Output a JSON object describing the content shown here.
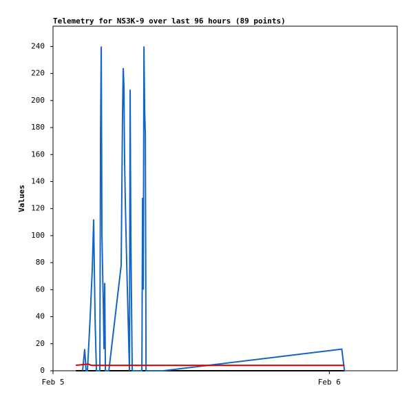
{
  "chart_data": {
    "type": "line",
    "title": "Telemetry for NS3K-9 over last 96 hours (89 points)",
    "y_label": "Values",
    "xlim": [
      0,
      29.9
    ],
    "xticks": [
      {
        "value": 0,
        "label": "Feb 5"
      },
      {
        "value": 24,
        "label": "Feb 6"
      }
    ],
    "ylim": [
      0,
      255
    ],
    "yticks": [
      0,
      20,
      40,
      60,
      80,
      100,
      120,
      140,
      160,
      180,
      200,
      220,
      240
    ],
    "grid": false,
    "series": [
      {
        "color": "#000000",
        "x": [
          1.98,
          25.32
        ],
        "values": [
          0,
          0
        ]
      },
      {
        "color": "#1565c0",
        "x": [
          2.57,
          2.75,
          2.87,
          2.99,
          3.23,
          3.41,
          3.53,
          3.65,
          3.77,
          4.07,
          4.13,
          4.19,
          4.25,
          4.37,
          4.43,
          4.49,
          4.55,
          4.85,
          5.92,
          6.04,
          6.1,
          6.16,
          6.22,
          6.28,
          6.4,
          6.52,
          6.64,
          6.7,
          6.76,
          6.88,
          7.72,
          7.78,
          7.84,
          7.9,
          7.96,
          8.02,
          8.08,
          9.58,
          25.08,
          25.32
        ],
        "values": [
          0,
          16,
          0,
          0,
          40,
          75,
          112,
          40,
          0,
          0,
          177,
          240,
          100,
          48,
          16,
          65,
          0,
          0,
          78,
          190,
          224,
          210,
          155,
          125,
          80,
          40,
          0,
          208,
          100,
          0,
          0,
          128,
          60,
          240,
          192,
          175,
          0,
          0,
          16,
          0
        ]
      },
      {
        "color": "#e00000",
        "x": [
          1.98,
          3.05,
          3.3,
          25.32
        ],
        "values": [
          4,
          5,
          4,
          4
        ]
      }
    ]
  }
}
